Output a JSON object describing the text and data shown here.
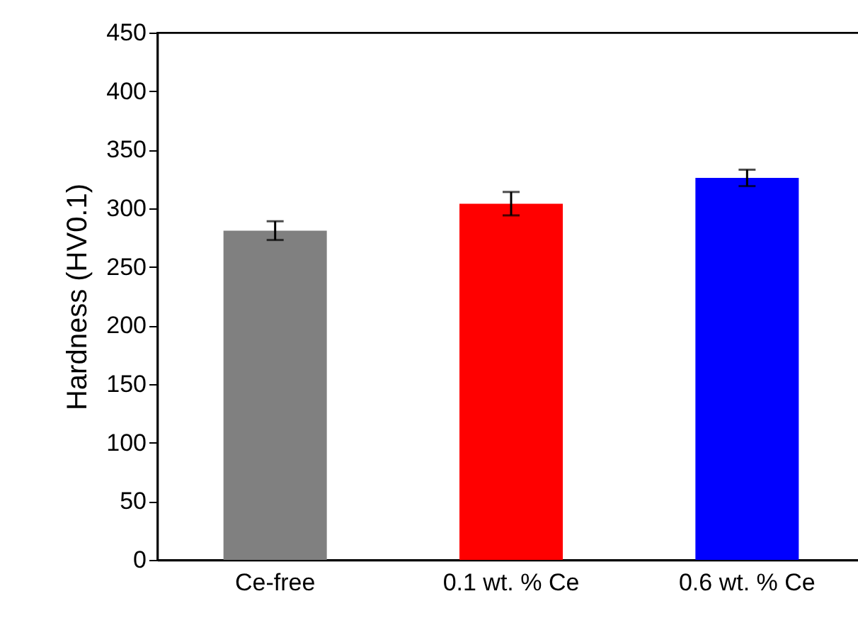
{
  "chart_data": {
    "type": "bar",
    "ylabel": "Hardness (HV0.1)",
    "categories": [
      "Ce-free",
      "0.1 wt. % Ce",
      "0.6 wt. % Ce"
    ],
    "values": [
      281,
      304,
      326
    ],
    "colors": [
      "#808080",
      "#ff0000",
      "#0000ff"
    ],
    "errors": [
      8,
      10,
      7
    ],
    "ylim": [
      0,
      450
    ],
    "yticks": [
      0,
      50,
      100,
      150,
      200,
      250,
      300,
      350,
      400,
      450
    ],
    "grid": false
  }
}
